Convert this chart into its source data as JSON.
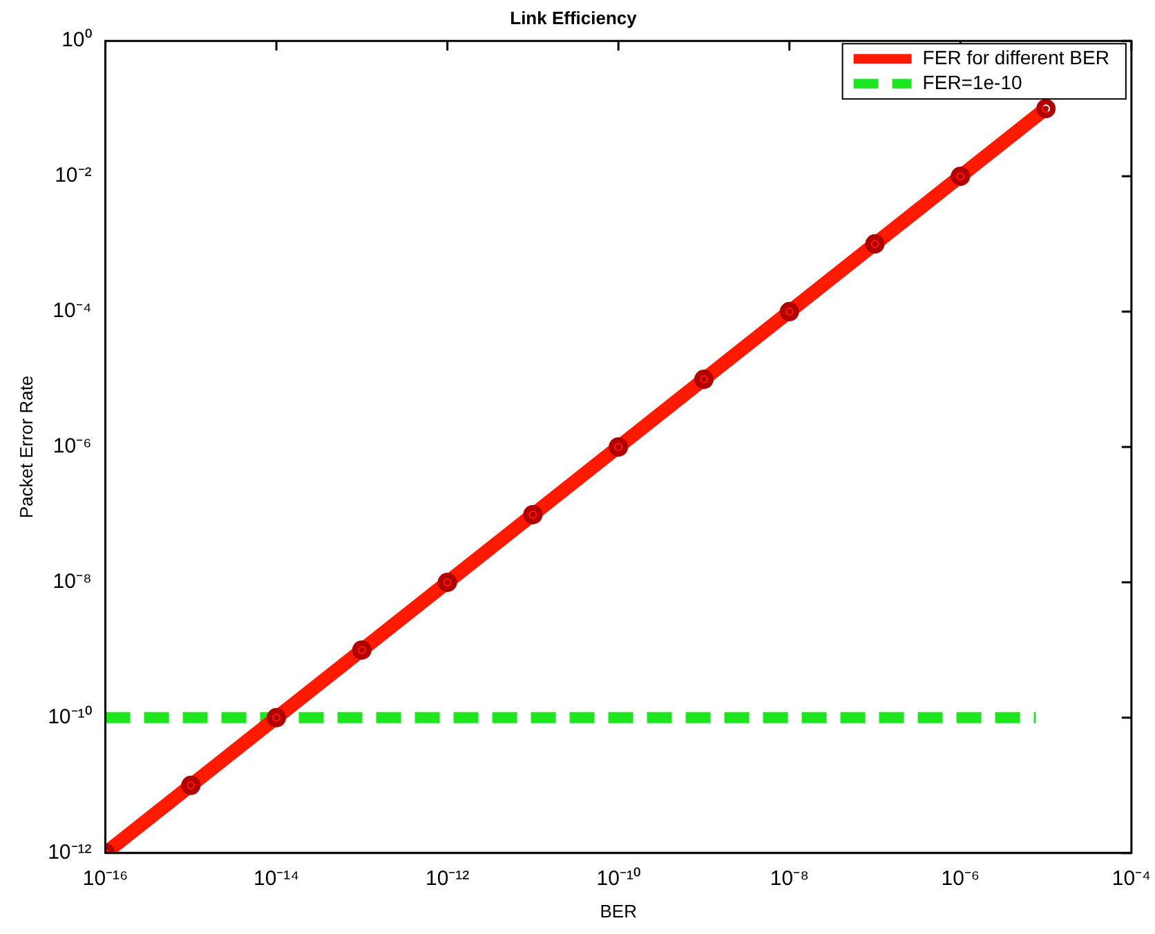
{
  "chart_data": {
    "type": "line",
    "title": "Link Efficiency",
    "xlabel": "BER",
    "ylabel": "Packet Error Rate",
    "log": "xy",
    "x": [
      1e-16,
      1e-15,
      1e-14,
      1e-13,
      1e-12,
      1e-11,
      1e-10,
      1e-09,
      1e-08,
      1e-07,
      1e-06,
      1e-05
    ],
    "series": [
      {
        "name": "FER for different BER",
        "color": "#ff1a00",
        "marker": "circle",
        "line_style": "solid",
        "values": [
          1e-12,
          1e-11,
          1e-10,
          1e-09,
          1e-08,
          1e-07,
          1e-06,
          1e-05,
          0.0001,
          0.001,
          0.01,
          0.1
        ]
      },
      {
        "name": "FER=1e-10",
        "color": "#1ee61e",
        "marker": "none",
        "line_style": "dashed",
        "x": [
          1e-16,
          7.6e-06
        ],
        "values": [
          1e-10,
          1e-10
        ]
      }
    ],
    "xlim": [
      1e-16,
      0.0001
    ],
    "ylim": [
      1e-12,
      1
    ],
    "xticks": [
      {
        "value": 1e-16,
        "label": "10⁻¹⁶"
      },
      {
        "value": 1e-14,
        "label": "10⁻¹⁴"
      },
      {
        "value": 1e-12,
        "label": "10⁻¹²"
      },
      {
        "value": 1e-10,
        "label": "10⁻¹⁰"
      },
      {
        "value": 1e-08,
        "label": "10⁻⁸"
      },
      {
        "value": 1e-06,
        "label": "10⁻⁶"
      },
      {
        "value": 0.0001,
        "label": "10⁻⁴"
      }
    ],
    "yticks": [
      {
        "value": 1e-12,
        "label": "10⁻¹²"
      },
      {
        "value": 1e-10,
        "label": "10⁻¹⁰"
      },
      {
        "value": 1e-08,
        "label": "10⁻⁸"
      },
      {
        "value": 1e-06,
        "label": "10⁻⁶"
      },
      {
        "value": 0.0001,
        "label": "10⁻⁴"
      },
      {
        "value": 0.01,
        "label": "10⁻²"
      },
      {
        "value": 1,
        "label": "10⁰"
      }
    ],
    "grid": false,
    "legend": "top right"
  }
}
